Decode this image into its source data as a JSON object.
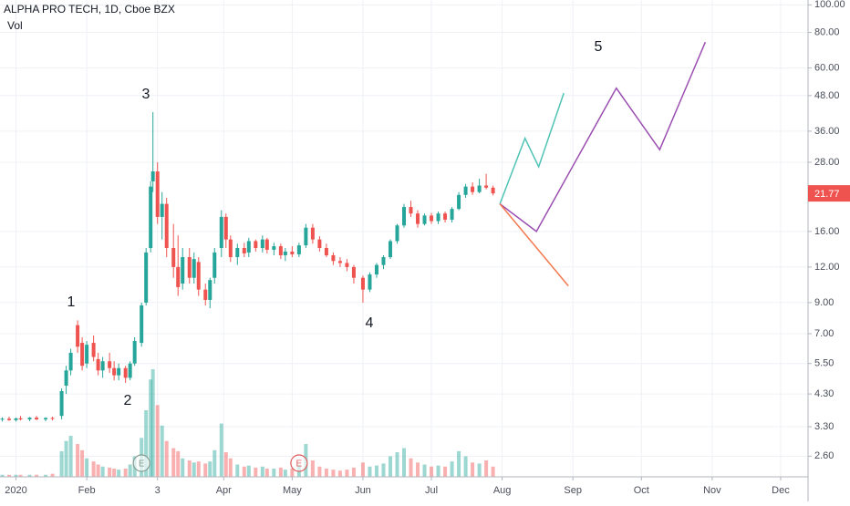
{
  "chart_data": {
    "type": "candlestick",
    "title": "ALPHA PRO TECH, 1D, Cboe BZX",
    "volume_label": "Vol",
    "log_scale": true,
    "grid": true,
    "up_color": "#26a69a",
    "down_color": "#ef5350",
    "xlim": [
      -7,
      347
    ],
    "xticks": [
      {
        "value": 0,
        "label": "2020"
      },
      {
        "value": 31,
        "label": "Feb"
      },
      {
        "value": 62,
        "label": "3"
      },
      {
        "value": 91,
        "label": "Apr"
      },
      {
        "value": 121,
        "label": "May"
      },
      {
        "value": 152,
        "label": "Jun"
      },
      {
        "value": 182,
        "label": "Jul"
      },
      {
        "value": 213,
        "label": "Aug"
      },
      {
        "value": 244,
        "label": "Sep"
      },
      {
        "value": 274,
        "label": "Oct"
      },
      {
        "value": 305,
        "label": "Nov"
      },
      {
        "value": 335,
        "label": "Dec"
      }
    ],
    "ylim": [
      2.2,
      104
    ],
    "yticks": [
      {
        "value": 100,
        "label": "100.00"
      },
      {
        "value": 80,
        "label": "80.00"
      },
      {
        "value": 60,
        "label": "60.00"
      },
      {
        "value": 48,
        "label": "48.00"
      },
      {
        "value": 36,
        "label": "36.00"
      },
      {
        "value": 28,
        "label": "28.00"
      },
      {
        "value": 16,
        "label": "16.00"
      },
      {
        "value": 12,
        "label": "12.00"
      },
      {
        "value": 9,
        "label": "9.00"
      },
      {
        "value": 7,
        "label": "7.00"
      },
      {
        "value": 5.5,
        "label": "5.50"
      },
      {
        "value": 4.3,
        "label": "4.30"
      },
      {
        "value": 3.3,
        "label": "3.30"
      },
      {
        "value": 2.6,
        "label": "2.60"
      }
    ],
    "last_price": 21.77,
    "x": [
      -6,
      -3,
      0,
      2,
      6,
      9,
      13,
      16,
      20,
      22,
      24,
      27,
      29,
      31,
      34,
      36,
      38,
      41,
      43,
      45,
      48,
      50,
      52,
      55,
      57,
      59,
      60,
      62,
      64,
      66,
      69,
      71,
      73,
      76,
      78,
      80,
      83,
      85,
      87,
      90,
      92,
      94,
      97,
      100,
      102,
      105,
      108,
      110,
      113,
      116,
      118,
      121,
      124,
      127,
      130,
      133,
      136,
      139,
      142,
      145,
      148,
      152,
      155,
      158,
      161,
      164,
      167,
      170,
      173,
      176,
      179,
      182,
      185,
      188,
      191,
      194,
      197,
      200,
      203,
      206,
      209
    ],
    "open": [
      3.5,
      3.52,
      3.48,
      3.53,
      3.5,
      3.55,
      3.5,
      3.54,
      3.6,
      4.6,
      5.2,
      7.5,
      6.5,
      5.5,
      6.5,
      5.7,
      5.2,
      5.6,
      5.3,
      5.0,
      5.3,
      4.9,
      5.5,
      6.5,
      9,
      14,
      24,
      26,
      18,
      20,
      14,
      12,
      10.5,
      13,
      11,
      12.5,
      10,
      9.2,
      11,
      14,
      18,
      15,
      13,
      14,
      13.5,
      14.8,
      14,
      15,
      13.8,
      14.2,
      13.2,
      13.6,
      13.3,
      14.3,
      16.5,
      15,
      14,
      13.2,
      12.6,
      12.4,
      12,
      11,
      10,
      11.3,
      12.2,
      13,
      14.8,
      16.8,
      19.5,
      18.5,
      17,
      18.2,
      17.4,
      18.5,
      17.6,
      19.2,
      21.5,
      23,
      22,
      23.2,
      22.8
    ],
    "high": [
      3.56,
      3.58,
      3.55,
      3.6,
      3.57,
      3.6,
      3.56,
      3.58,
      4.5,
      5.4,
      6.2,
      7.8,
      6.8,
      6.6,
      6.9,
      6.0,
      5.8,
      6.0,
      5.6,
      5.5,
      5.4,
      5.6,
      6.8,
      9.0,
      14,
      24,
      42,
      28,
      22,
      21,
      17,
      15.5,
      14,
      14,
      13.5,
      13,
      10.5,
      11,
      14,
      19,
      18.5,
      15.5,
      14.5,
      14.6,
      15.2,
      15,
      15.5,
      15.2,
      14.6,
      14.5,
      14,
      14.2,
      14.6,
      17,
      17,
      15.4,
      14.5,
      13.5,
      13,
      12.8,
      12.2,
      11.2,
      11.5,
      12.4,
      13.2,
      15,
      17,
      20,
      20.5,
      19,
      18.5,
      18.6,
      18.8,
      18.8,
      19.5,
      22,
      23.5,
      23.8,
      24.5,
      25.5,
      23.2
    ],
    "low": [
      3.44,
      3.46,
      3.44,
      3.47,
      3.45,
      3.48,
      3.45,
      3.47,
      3.5,
      4.3,
      5.0,
      6.0,
      5.2,
      5.3,
      5.6,
      5.0,
      4.9,
      5.1,
      4.8,
      4.8,
      4.7,
      4.8,
      5.4,
      6.3,
      8.8,
      13.5,
      22,
      17,
      15,
      13,
      11,
      9.5,
      10,
      10.5,
      10.5,
      9.5,
      8.8,
      8.6,
      10.5,
      13,
      14,
      12.5,
      12.2,
      13,
      13,
      13.6,
      13.5,
      13.4,
      13.2,
      12.8,
      12.6,
      13,
      13,
      14,
      14.5,
      13.6,
      13,
      12.2,
      12,
      11.6,
      10.5,
      9.0,
      9.8,
      11,
      11.8,
      12.8,
      14.5,
      16.5,
      18,
      16.5,
      16.8,
      17,
      17,
      17.2,
      17.2,
      19,
      21,
      21.5,
      21.8,
      22.5,
      21.4
    ],
    "close": [
      3.52,
      3.48,
      3.53,
      3.5,
      3.55,
      3.5,
      3.54,
      3.52,
      4.4,
      5.2,
      6.0,
      6.3,
      5.4,
      6.4,
      5.8,
      5.2,
      5.6,
      5.3,
      5.0,
      5.3,
      4.9,
      5.5,
      6.6,
      8.8,
      13.5,
      23,
      26,
      18,
      20,
      14,
      12,
      10.2,
      13,
      11,
      12.8,
      10,
      9.2,
      10.8,
      13.5,
      18,
      15,
      13,
      14,
      13.4,
      14.8,
      14,
      15,
      13.8,
      14.2,
      13.2,
      13.6,
      13.3,
      14.3,
      16.5,
      15,
      14,
      13.2,
      12.6,
      12.4,
      12,
      11,
      10,
      11.3,
      12.2,
      13,
      14.8,
      16.8,
      19.5,
      18.5,
      17,
      18.2,
      17.4,
      18.5,
      17.6,
      19.2,
      21.5,
      23,
      22,
      23.2,
      22.8,
      21.77
    ],
    "volume": [
      0.2,
      0.2,
      0.2,
      0.2,
      0.2,
      0.2,
      0.2,
      0.3,
      2.5,
      3.5,
      4.0,
      3.2,
      2.6,
      1.8,
      1.5,
      1.2,
      1.0,
      0.9,
      0.8,
      0.7,
      0.8,
      1.2,
      2.0,
      3.8,
      6.5,
      9.5,
      10.5,
      7.0,
      5.0,
      3.5,
      2.8,
      2.5,
      1.8,
      1.6,
      1.4,
      1.5,
      1.3,
      1.5,
      2.6,
      5.2,
      2.4,
      1.8,
      1.2,
      1.0,
      1.1,
      0.9,
      1.0,
      0.8,
      0.8,
      0.9,
      0.7,
      0.8,
      1.2,
      3.2,
      1.6,
      1.0,
      0.8,
      0.7,
      0.6,
      0.7,
      0.9,
      1.4,
      1.0,
      1.1,
      1.3,
      2.0,
      2.4,
      2.8,
      1.8,
      1.4,
      1.2,
      1.0,
      1.1,
      1.0,
      1.5,
      2.5,
      2.0,
      1.4,
      1.3,
      1.6,
      1.0
    ],
    "events": [
      {
        "label": "E",
        "x": 55,
        "color": "#8a9a8f"
      },
      {
        "label": "E",
        "x": 124,
        "color": "#e05a5a"
      }
    ],
    "projections": [
      {
        "color": "#4fc3b5",
        "x": [
          212,
          223,
          229,
          240
        ],
        "y": [
          20,
          34,
          27,
          49
        ]
      },
      {
        "color": "#9b4fb0",
        "x": [
          212,
          228,
          263,
          282,
          302
        ],
        "y": [
          20,
          16,
          51,
          31,
          74
        ]
      },
      {
        "color": "#f4794e",
        "x": [
          212,
          242
        ],
        "y": [
          20,
          10.3
        ]
      }
    ],
    "wave_labels": [
      "1",
      "2",
      "3",
      "4",
      "5"
    ]
  }
}
